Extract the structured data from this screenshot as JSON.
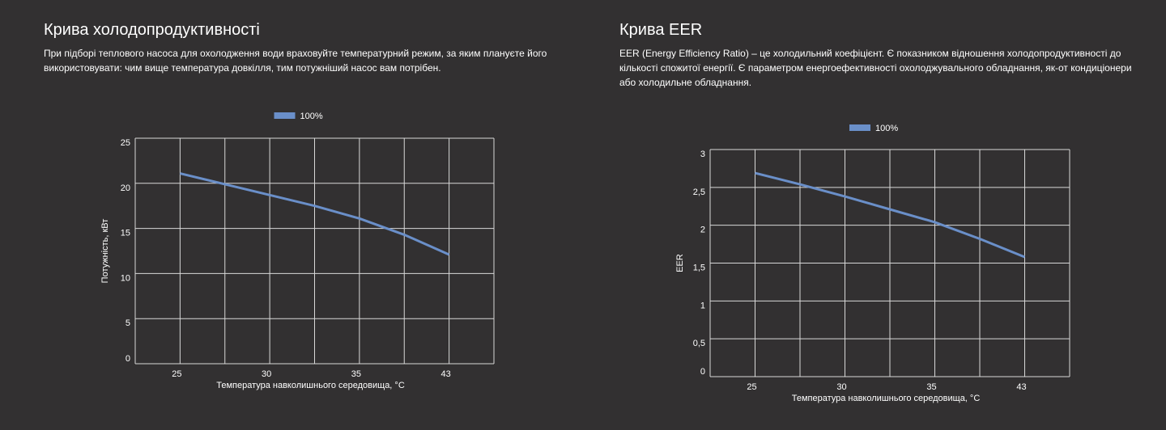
{
  "left": {
    "title": "Крива холодопродуктивності",
    "description": "При підборі теплового насоса для охолодження води враховуйте температурний режим, за яким плануєте його використовувати: чим вище температура довкілля, тим потужніший насос вам потрібен."
  },
  "right": {
    "title": "Крива EER",
    "description": "EER (Energy Efficiency Ratio) – це холодильний коефіцієнт. Є показником відношення холодопродуктивності до кількості спожитої енергії. Є параметром енергоефективності охолоджувального обладнання, як-от кондиціонери або холодильне обладнання."
  },
  "chart_data": [
    {
      "type": "line",
      "title": "Крива холодопродуктивності",
      "xlabel": "Температура навколишнього середовища, °C",
      "ylabel": "Потужність, кВт",
      "x_tick_labels": [
        "25",
        "30",
        "35",
        "43"
      ],
      "y_tick_labels": [
        "0",
        "5",
        "10",
        "15",
        "20",
        "25"
      ],
      "ylim": [
        0,
        25
      ],
      "grid": true,
      "legend": {
        "position": "top-center",
        "entries": [
          "100%"
        ]
      },
      "series": [
        {
          "name": "100%",
          "color": "#6a8fc9",
          "values": [
            21.1,
            19.9,
            18.7,
            17.5,
            16.1,
            14.3,
            12.1
          ]
        }
      ]
    },
    {
      "type": "line",
      "title": "Крива EER",
      "xlabel": "Температура навколишнього середовища, °C",
      "ylabel": "EER",
      "x_tick_labels": [
        "25",
        "30",
        "35",
        "43"
      ],
      "y_tick_labels": [
        "0",
        "0,5",
        "1",
        "1,5",
        "2",
        "2,5",
        "3"
      ],
      "ylim": [
        0,
        3
      ],
      "grid": true,
      "legend": {
        "position": "top-center",
        "entries": [
          "100%"
        ]
      },
      "series": [
        {
          "name": "100%",
          "color": "#6a8fc9",
          "values": [
            2.69,
            2.54,
            2.38,
            2.21,
            2.04,
            1.82,
            1.58
          ]
        }
      ]
    }
  ]
}
